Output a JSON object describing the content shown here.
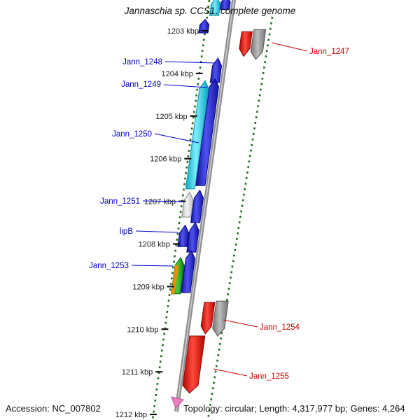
{
  "title": "Jannaschia sp. CCS1, complete genome",
  "footer": {
    "accession": "Accession: NC_007802",
    "topology": "Topology: circular; Length: 4,317,977 bp; Genes: 4,264"
  },
  "colors": {
    "blue": "#1f24c8",
    "cyan": "#2bd8f0",
    "red": "#e8130c",
    "gray": "#8f8f8f",
    "lightgray": "#d9d9d9",
    "green": "#1fa01f",
    "orange": "#f08a00",
    "label_blue": "#0000cc",
    "label_red": "#cc0000",
    "axis_gray": "#8f8f8f",
    "dotted_green": "#1d6f1d",
    "marker_pink": "#ef7fc0"
  },
  "genome_map": {
    "ticks": [
      {
        "kbp": 1203,
        "label": "1203 kbp"
      },
      {
        "kbp": 1204,
        "label": "1204 kbp"
      },
      {
        "kbp": 1205,
        "label": "1205 kbp"
      },
      {
        "kbp": 1206,
        "label": "1206 kbp"
      },
      {
        "kbp": 1207,
        "label": "1207 kbp"
      },
      {
        "kbp": 1208,
        "label": "1208 kbp"
      },
      {
        "kbp": 1209,
        "label": "1209 kbp"
      },
      {
        "kbp": 1210,
        "label": "1210 kbp"
      },
      {
        "kbp": 1211,
        "label": "1211 kbp"
      },
      {
        "kbp": 1212,
        "label": "1212 kbp"
      }
    ],
    "genes": [
      {
        "id": "partial-left-outer",
        "label": "",
        "strand": "minus",
        "lane": "L2",
        "color": "cyan",
        "start_kbp": 1202.2,
        "end_kbp": 1202.64
      },
      {
        "id": "partial-left-inner",
        "label": "",
        "strand": "minus",
        "lane": "L1",
        "color": "blue",
        "start_kbp": 1202.2,
        "end_kbp": 1202.5
      },
      {
        "id": "gene-1202",
        "label": "",
        "strand": "minus",
        "lane": "L3",
        "color": "blue",
        "start_kbp": 1202.73,
        "end_kbp": 1203.05
      },
      {
        "id": "Jann_1248",
        "label": "Jann_1248",
        "strand": "minus",
        "lane": "L1",
        "color": "blue",
        "start_kbp": 1203.64,
        "end_kbp": 1204.21
      },
      {
        "id": "Jann_1249",
        "label": "Jann_1249",
        "strand": "minus",
        "lane": "L1",
        "color": "blue",
        "start_kbp": 1204.13,
        "end_kbp": 1206.63
      },
      {
        "id": "Jann_1250",
        "label": "Jann_1250",
        "strand": "minus",
        "lane": "L2",
        "color": "cyan",
        "start_kbp": 1204.17,
        "end_kbp": 1206.71
      },
      {
        "id": "Jann_1251",
        "label": "Jann_1251",
        "strand": "minus",
        "lane": "L2",
        "color": "lightgray",
        "start_kbp": 1206.79,
        "end_kbp": 1207.37
      },
      {
        "id": "gene-1207a",
        "label": "",
        "strand": "minus",
        "lane": "L1",
        "color": "blue",
        "start_kbp": 1206.74,
        "end_kbp": 1207.5
      },
      {
        "id": "lipB",
        "label": "lipB",
        "strand": "minus",
        "lane": "L2",
        "color": "blue",
        "start_kbp": 1207.56,
        "end_kbp": 1208.06
      },
      {
        "id": "gene-1208a",
        "label": "",
        "strand": "minus",
        "lane": "L1",
        "color": "blue",
        "start_kbp": 1207.5,
        "end_kbp": 1208.19
      },
      {
        "id": "Jann_1253",
        "label": "Jann_1253",
        "strand": "minus",
        "lane": "L2",
        "color": "green",
        "stripe": "orange",
        "start_kbp": 1208.32,
        "end_kbp": 1209.17
      },
      {
        "id": "gene-1209a",
        "label": "",
        "strand": "minus",
        "lane": "L1",
        "color": "blue",
        "start_kbp": 1208.16,
        "end_kbp": 1209.14
      },
      {
        "id": "Jann_1247",
        "label": "Jann_1247",
        "strand": "plus",
        "lane": "R2",
        "color": "red",
        "start_kbp": 1203.02,
        "end_kbp": 1203.6
      },
      {
        "id": "gene-1203a",
        "label": "",
        "strand": "plus",
        "lane": "R3",
        "color": "gray",
        "start_kbp": 1202.97,
        "end_kbp": 1203.67
      },
      {
        "id": "Jann_1254",
        "label": "Jann_1254",
        "strand": "plus",
        "lane": "R2",
        "color": "red",
        "start_kbp": 1209.37,
        "end_kbp": 1210.11
      },
      {
        "id": "gene-1210a",
        "label": "",
        "strand": "plus",
        "lane": "R3",
        "color": "gray",
        "start_kbp": 1209.34,
        "end_kbp": 1210.16
      },
      {
        "id": "Jann_1255",
        "label": "Jann_1255",
        "strand": "plus",
        "lane": "R1",
        "color": "red",
        "start_kbp": 1210.16,
        "end_kbp": 1211.5,
        "width": 22
      }
    ]
  }
}
